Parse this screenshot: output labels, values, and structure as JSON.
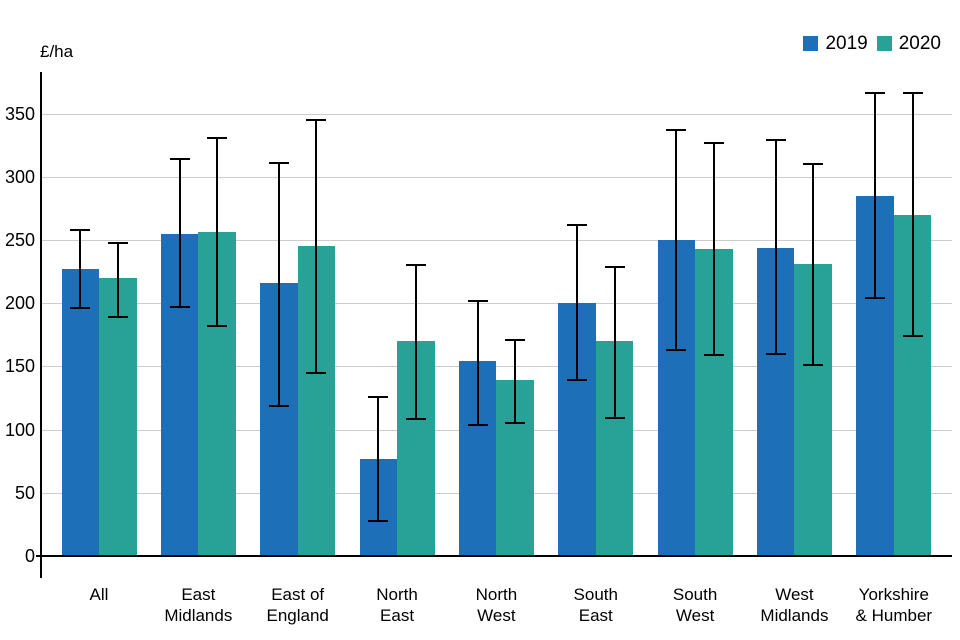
{
  "page": {
    "ylabel": "£/ha"
  },
  "legend": {
    "items": [
      {
        "label": "2019",
        "color": "#1d70b8"
      },
      {
        "label": "2020",
        "color": "#28a197"
      }
    ]
  },
  "chart_data": {
    "type": "bar",
    "title": "",
    "xlabel": "",
    "ylabel": "£/ha",
    "categories": [
      "All",
      "East Midlands",
      "East of England",
      "North East",
      "North West",
      "South East",
      "South West",
      "West Midlands",
      "Yorkshire & Humber"
    ],
    "category_label_lines": [
      [
        "All"
      ],
      [
        "East",
        "Midlands"
      ],
      [
        "East of",
        "England"
      ],
      [
        "North",
        "East"
      ],
      [
        "North",
        "West"
      ],
      [
        "South",
        "East"
      ],
      [
        "South",
        "West"
      ],
      [
        "West",
        "Midlands"
      ],
      [
        "Yorkshire",
        "& Humber"
      ]
    ],
    "series": [
      {
        "name": "2019",
        "color": "#1d70b8",
        "values": [
          227,
          255,
          216,
          77,
          154,
          200,
          250,
          244,
          285
        ],
        "error_low": [
          196,
          197,
          119,
          28,
          104,
          139,
          163,
          160,
          204
        ],
        "error_high": [
          258,
          314,
          311,
          126,
          202,
          262,
          337,
          329,
          366
        ]
      },
      {
        "name": "2020",
        "color": "#28a197",
        "values": [
          220,
          256,
          245,
          170,
          139,
          170,
          243,
          231,
          270
        ],
        "error_low": [
          189,
          182,
          145,
          108,
          105,
          109,
          159,
          151,
          174
        ],
        "error_high": [
          248,
          331,
          345,
          230,
          171,
          229,
          327,
          310,
          366
        ]
      }
    ],
    "yticks": [
      0,
      50,
      100,
      150,
      200,
      250,
      300,
      350
    ],
    "ylim": [
      0,
      372
    ],
    "grid": "horizontal",
    "gridline_color": "#cccccc",
    "error_bars": true,
    "legend_position": "top-right"
  }
}
